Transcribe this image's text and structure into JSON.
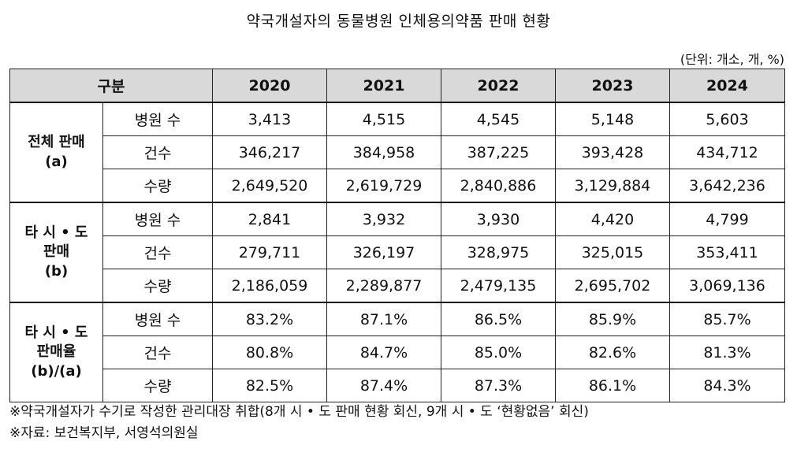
{
  "title": "약국개설자의 동물병원 인체용의약품 판매 현황",
  "unit": "(단위: 개소, 개, %)",
  "header": {
    "category": "구분",
    "years": [
      "2020",
      "2021",
      "2022",
      "2023",
      "2024"
    ]
  },
  "groups": [
    {
      "label_lines": [
        "전체 판매",
        "(a)"
      ],
      "rows": [
        {
          "label": "병원 수",
          "values": [
            "3,413",
            "4,515",
            "4,545",
            "5,148",
            "5,603"
          ]
        },
        {
          "label": "건수",
          "values": [
            "346,217",
            "384,958",
            "387,225",
            "393,428",
            "434,712"
          ]
        },
        {
          "label": "수량",
          "values": [
            "2,649,520",
            "2,619,729",
            "2,840,886",
            "3,129,884",
            "3,642,236"
          ]
        }
      ]
    },
    {
      "label_lines": [
        "타 시 • 도",
        "판매",
        "(b)"
      ],
      "rows": [
        {
          "label": "병원 수",
          "values": [
            "2,841",
            "3,932",
            "3,930",
            "4,420",
            "4,799"
          ]
        },
        {
          "label": "건수",
          "values": [
            "279,711",
            "326,197",
            "328,975",
            "325,015",
            "353,411"
          ]
        },
        {
          "label": "수량",
          "values": [
            "2,186,059",
            "2,289,877",
            "2,479,135",
            "2,695,702",
            "3,069,136"
          ]
        }
      ]
    },
    {
      "label_lines": [
        "타 시 • 도",
        "판매율",
        "(b)/(a)"
      ],
      "rows": [
        {
          "label": "병원 수",
          "values": [
            "83.2%",
            "87.1%",
            "86.5%",
            "85.9%",
            "85.7%"
          ]
        },
        {
          "label": "건수",
          "values": [
            "80.8%",
            "84.7%",
            "85.0%",
            "82.6%",
            "81.3%"
          ]
        },
        {
          "label": "수량",
          "values": [
            "82.5%",
            "87.4%",
            "87.3%",
            "86.1%",
            "84.3%"
          ]
        }
      ]
    }
  ],
  "notes": [
    "※약국개설자가 수기로 작성한 관리대장 취합(8개 시 • 도 판매 현황 회신, 9개 시 • 도 ‘현황없음’ 회신)",
    "※자료: 보건복지부, 서영석의원실"
  ]
}
